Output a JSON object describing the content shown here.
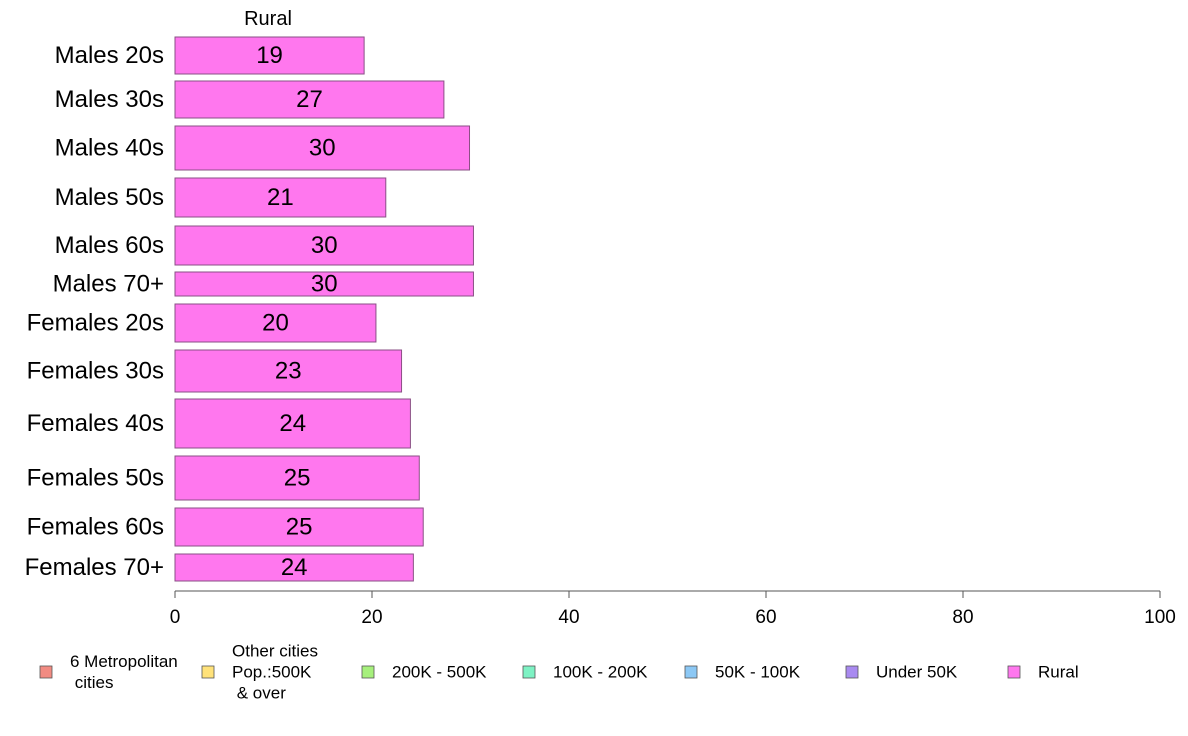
{
  "chart_data": {
    "type": "bar",
    "orientation": "horizontal",
    "panel_title": "Rural",
    "categories": [
      "Males 20s",
      "Males 30s",
      "Males 40s",
      "Males 50s",
      "Males 60s",
      "Males 70+",
      "Females 20s",
      "Females 30s",
      "Females 40s",
      "Females 50s",
      "Females 60s",
      "Females 70+"
    ],
    "values": [
      19.2,
      27.3,
      29.9,
      21.4,
      30.3,
      30.3,
      20.4,
      23.0,
      23.9,
      24.8,
      25.2,
      24.2
    ],
    "value_labels": [
      "19",
      "27",
      "30",
      "21",
      "30",
      "30",
      "20",
      "23",
      "24",
      "25",
      "25",
      "24"
    ],
    "bar_color": "#FF77EE",
    "xlim": [
      0,
      100
    ],
    "xticks": [
      "0",
      "20",
      "40",
      "60",
      "80",
      "100"
    ],
    "xlabel": "",
    "ylabel": "",
    "grid": false,
    "legend": {
      "placement": "bottom",
      "items": [
        {
          "lines": [
            "6 Metropolitan",
            " cities"
          ],
          "color": "#F28B82"
        },
        {
          "lines": [
            "Other cities",
            "Pop.:500K",
            " & over"
          ],
          "color": "#FFE27A"
        },
        {
          "lines": [
            "200K - 500K"
          ],
          "color": "#A6F07C"
        },
        {
          "lines": [
            "100K - 200K"
          ],
          "color": "#7EF2C4"
        },
        {
          "lines": [
            "50K - 100K"
          ],
          "color": "#8CC8F5"
        },
        {
          "lines": [
            "Under 50K"
          ],
          "color": "#A98AF0"
        },
        {
          "lines": [
            "Rural"
          ],
          "color": "#FF77EE"
        }
      ]
    }
  }
}
